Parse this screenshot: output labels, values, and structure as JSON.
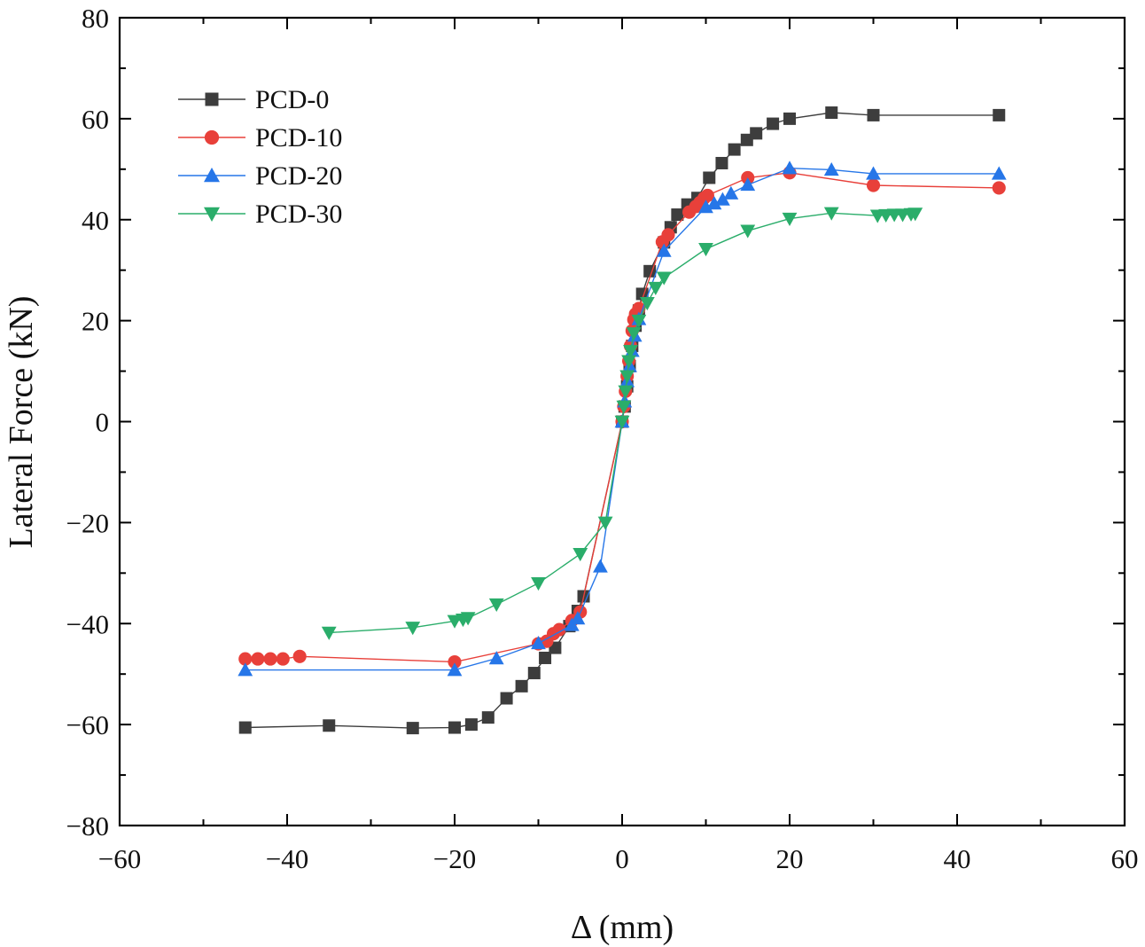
{
  "chart_data": {
    "type": "line",
    "title": "",
    "xlabel": "Δ (mm)",
    "ylabel": "Lateral Force (kN)",
    "xlim": [
      -60,
      60
    ],
    "ylim": [
      -80,
      80
    ],
    "xticks": [
      -60,
      -40,
      -20,
      0,
      20,
      40,
      60
    ],
    "yticks": [
      -80,
      -60,
      -40,
      -20,
      0,
      20,
      40,
      60,
      80
    ],
    "legend_position": "top-left",
    "grid": false,
    "series": [
      {
        "name": "PCD-0",
        "color": "#3d3d3d",
        "marker": "square",
        "points": [
          [
            -45,
            -60.6
          ],
          [
            -35,
            -60.2
          ],
          [
            -25,
            -60.7
          ],
          [
            -20,
            -60.6
          ],
          [
            -18,
            -60.0
          ],
          [
            -16,
            -58.6
          ],
          [
            -13.8,
            -54.8
          ],
          [
            -12,
            -52.4
          ],
          [
            -10.5,
            -49.8
          ],
          [
            -9.2,
            -46.8
          ],
          [
            -8,
            -44.8
          ],
          [
            -6.3,
            -40.5
          ],
          [
            -5.3,
            -37.5
          ],
          [
            -4.6,
            -34.6
          ],
          [
            0,
            0
          ],
          [
            0.3,
            3
          ],
          [
            0.6,
            7
          ],
          [
            0.9,
            11
          ],
          [
            1.2,
            15
          ],
          [
            1.6,
            19
          ],
          [
            2,
            22
          ],
          [
            2.4,
            25.3
          ],
          [
            3.3,
            29.8
          ],
          [
            5,
            35.5
          ],
          [
            5.8,
            38.5
          ],
          [
            6.6,
            41
          ],
          [
            7.8,
            43
          ],
          [
            9,
            44.3
          ],
          [
            10.4,
            48.3
          ],
          [
            11.9,
            51.2
          ],
          [
            13.4,
            53.9
          ],
          [
            14.9,
            55.8
          ],
          [
            16,
            57.1
          ],
          [
            18,
            59
          ],
          [
            20,
            60
          ],
          [
            25,
            61.2
          ],
          [
            30,
            60.7
          ],
          [
            45,
            60.7
          ]
        ]
      },
      {
        "name": "PCD-10",
        "color": "#e8403a",
        "marker": "circle",
        "points": [
          [
            -45,
            -47
          ],
          [
            -43.5,
            -47
          ],
          [
            -42,
            -47
          ],
          [
            -40.5,
            -47
          ],
          [
            -38.5,
            -46.5
          ],
          [
            -20,
            -47.6
          ],
          [
            -10,
            -44
          ],
          [
            -9,
            -43.5
          ],
          [
            -8.2,
            -42
          ],
          [
            -7.5,
            -41.2
          ],
          [
            -6,
            -39.4
          ],
          [
            -5,
            -37.7
          ],
          [
            0,
            0
          ],
          [
            0.2,
            3
          ],
          [
            0.4,
            6
          ],
          [
            0.6,
            9
          ],
          [
            0.8,
            12
          ],
          [
            1,
            15
          ],
          [
            1.2,
            18
          ],
          [
            1.4,
            20.2
          ],
          [
            1.6,
            21.3
          ],
          [
            2,
            22.4
          ],
          [
            4.8,
            35.6
          ],
          [
            5.5,
            37
          ],
          [
            8,
            41.5
          ],
          [
            8.8,
            42.6
          ],
          [
            9.3,
            43.4
          ],
          [
            9.8,
            44.3
          ],
          [
            10.2,
            44.8
          ],
          [
            15,
            48.3
          ],
          [
            20,
            49.3
          ],
          [
            30,
            46.8
          ],
          [
            45,
            46.3
          ]
        ]
      },
      {
        "name": "PCD-20",
        "color": "#2676e8",
        "marker": "triangle-up",
        "points": [
          [
            -45,
            -49.2
          ],
          [
            -20,
            -49.2
          ],
          [
            -15,
            -46.9
          ],
          [
            -10,
            -43.9
          ],
          [
            -6,
            -40.3
          ],
          [
            -5.3,
            -39
          ],
          [
            -2.6,
            -28.7
          ],
          [
            0,
            0
          ],
          [
            0.3,
            4
          ],
          [
            0.6,
            8
          ],
          [
            0.9,
            11
          ],
          [
            1.2,
            14
          ],
          [
            1.5,
            17
          ],
          [
            2,
            20.3
          ],
          [
            5,
            33.8
          ],
          [
            10,
            42.5
          ],
          [
            11,
            43.2
          ],
          [
            12,
            44
          ],
          [
            13,
            45.2
          ],
          [
            15,
            46.9
          ],
          [
            20,
            50.2
          ],
          [
            25,
            49.9
          ],
          [
            30,
            49.1
          ],
          [
            45,
            49.1
          ]
        ]
      },
      {
        "name": "PCD-30",
        "color": "#2aad6a",
        "marker": "triangle-down",
        "points": [
          [
            -35,
            -41.8
          ],
          [
            -25,
            -40.8
          ],
          [
            -20,
            -39.5
          ],
          [
            -19,
            -39.2
          ],
          [
            -18.4,
            -38.9
          ],
          [
            -15,
            -36.2
          ],
          [
            -10,
            -32
          ],
          [
            -5,
            -26.2
          ],
          [
            -2,
            -20
          ],
          [
            0,
            0
          ],
          [
            0.2,
            3
          ],
          [
            0.4,
            6
          ],
          [
            0.6,
            9
          ],
          [
            0.8,
            12
          ],
          [
            1,
            14
          ],
          [
            1.4,
            17.5
          ],
          [
            2,
            20
          ],
          [
            3,
            23.5
          ],
          [
            4,
            26.5
          ],
          [
            5,
            28.5
          ],
          [
            10,
            34.2
          ],
          [
            15,
            37.8
          ],
          [
            20,
            40.2
          ],
          [
            25,
            41.3
          ],
          [
            30.5,
            40.8
          ],
          [
            31.5,
            40.9
          ],
          [
            32.5,
            41
          ],
          [
            33.5,
            41
          ],
          [
            34.5,
            41.1
          ],
          [
            35,
            41.2
          ]
        ]
      }
    ]
  }
}
